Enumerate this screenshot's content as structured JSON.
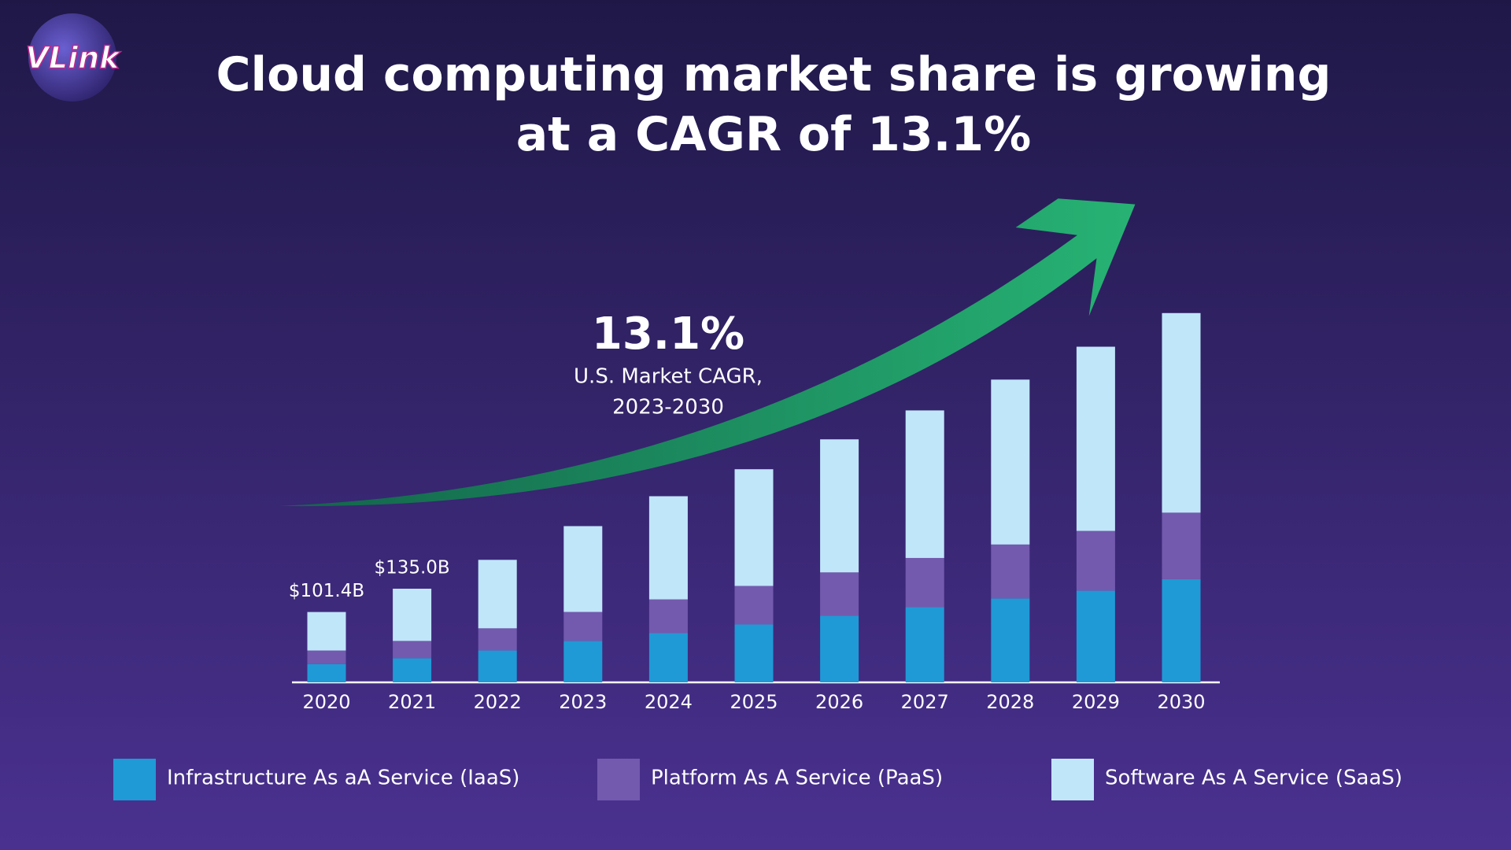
{
  "logo": "VLink",
  "chart_data": {
    "type": "stacked_bar",
    "title": [
      "Cloud computing market share is growing",
      "at a CAGR of 13.1%"
    ],
    "annotation": {
      "value": "13.1%",
      "lines": [
        "U.S. Market CAGR,",
        "2023-2030"
      ]
    },
    "categories": [
      "2020",
      "2021",
      "2022",
      "2023",
      "2024",
      "2025",
      "2026",
      "2027",
      "2028",
      "2029",
      "2030"
    ],
    "series": [
      {
        "name": "Infrastructure As aA Service (IaaS)",
        "color": "#1f9ad6",
        "values": [
          26.4,
          34.7,
          45.9,
          59.8,
          70.9,
          83.4,
          95.9,
          108.4,
          120.9,
          132.1,
          148.7
        ]
      },
      {
        "name": "Platform As A Service (PaaS)",
        "color": "#735aae",
        "values": [
          19.5,
          25.0,
          32.0,
          41.7,
          48.7,
          55.6,
          62.6,
          70.9,
          77.8,
          86.2,
          95.9
        ]
      },
      {
        "name": "Software As A Service (SaaS)",
        "color": "#c0e6fa",
        "values": [
          55.5,
          75.3,
          98.7,
          123.7,
          148.7,
          168.2,
          191.8,
          212.7,
          237.7,
          265.5,
          287.7
        ]
      }
    ],
    "total_labels": [
      {
        "category": "2020",
        "value": 101.4,
        "label": "$101.4B"
      },
      {
        "category": "2021",
        "value": 135.0,
        "label": "$135.0B"
      }
    ]
  }
}
